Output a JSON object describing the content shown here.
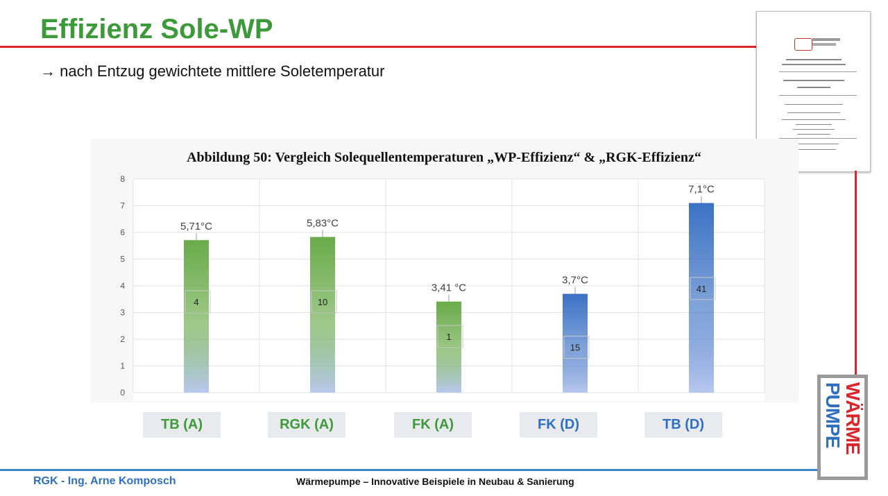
{
  "slide": {
    "title": "Effizienz Sole-WP",
    "subtitle": "→ nach Entzug gewichtete mittlere Soletemperatur",
    "footer_left": "RGK - Ing. Arne Komposch",
    "footer_center": "Wärmepumpe – Innovative Beispiele in Neubau & Sanierung",
    "logo_word_1": "WÄRME",
    "logo_word_2": "PUMPE",
    "colors": {
      "title": "#3d9a3a",
      "accent_red": "#d9262b",
      "footer_blue": "#3a86c8",
      "green_bar": "#6aab4a",
      "blue_bar": "#3c72c4"
    }
  },
  "category_labels": [
    {
      "text": "TB (A)",
      "color": "green"
    },
    {
      "text": "RGK (A)",
      "color": "green"
    },
    {
      "text": "FK (A)",
      "color": "green"
    },
    {
      "text": "FK (D)",
      "color": "blue"
    },
    {
      "text": "TB (D)",
      "color": "blue"
    }
  ],
  "chart_data": {
    "type": "bar",
    "title": "Abbildung 50: Vergleich Solequellentemperaturen „WP-Effizienz“ & „RGK-Effizienz“",
    "categories": [
      "TB (A)",
      "RGK (A)",
      "FK (A)",
      "FK (D)",
      "TB (D)"
    ],
    "values": [
      5.71,
      5.83,
      3.41,
      3.7,
      7.1
    ],
    "value_labels": [
      "5,71°C",
      "5,83°C",
      "3,41 °C",
      "3,7°C",
      "7,1°C"
    ],
    "count_labels": [
      "4",
      "10",
      "1",
      "15",
      "41"
    ],
    "count_label_levels": [
      3.4,
      3.4,
      2.1,
      1.7,
      3.9
    ],
    "bar_colors": [
      "#6aab4a",
      "#6aab4a",
      "#6aab4a",
      "#3c72c4",
      "#3c72c4"
    ],
    "ylim": [
      0,
      8
    ],
    "yticks": [
      "0",
      "1",
      "2",
      "3",
      "4",
      "5",
      "6",
      "7",
      "8"
    ],
    "grid": true,
    "xlabel": "",
    "ylabel": ""
  }
}
